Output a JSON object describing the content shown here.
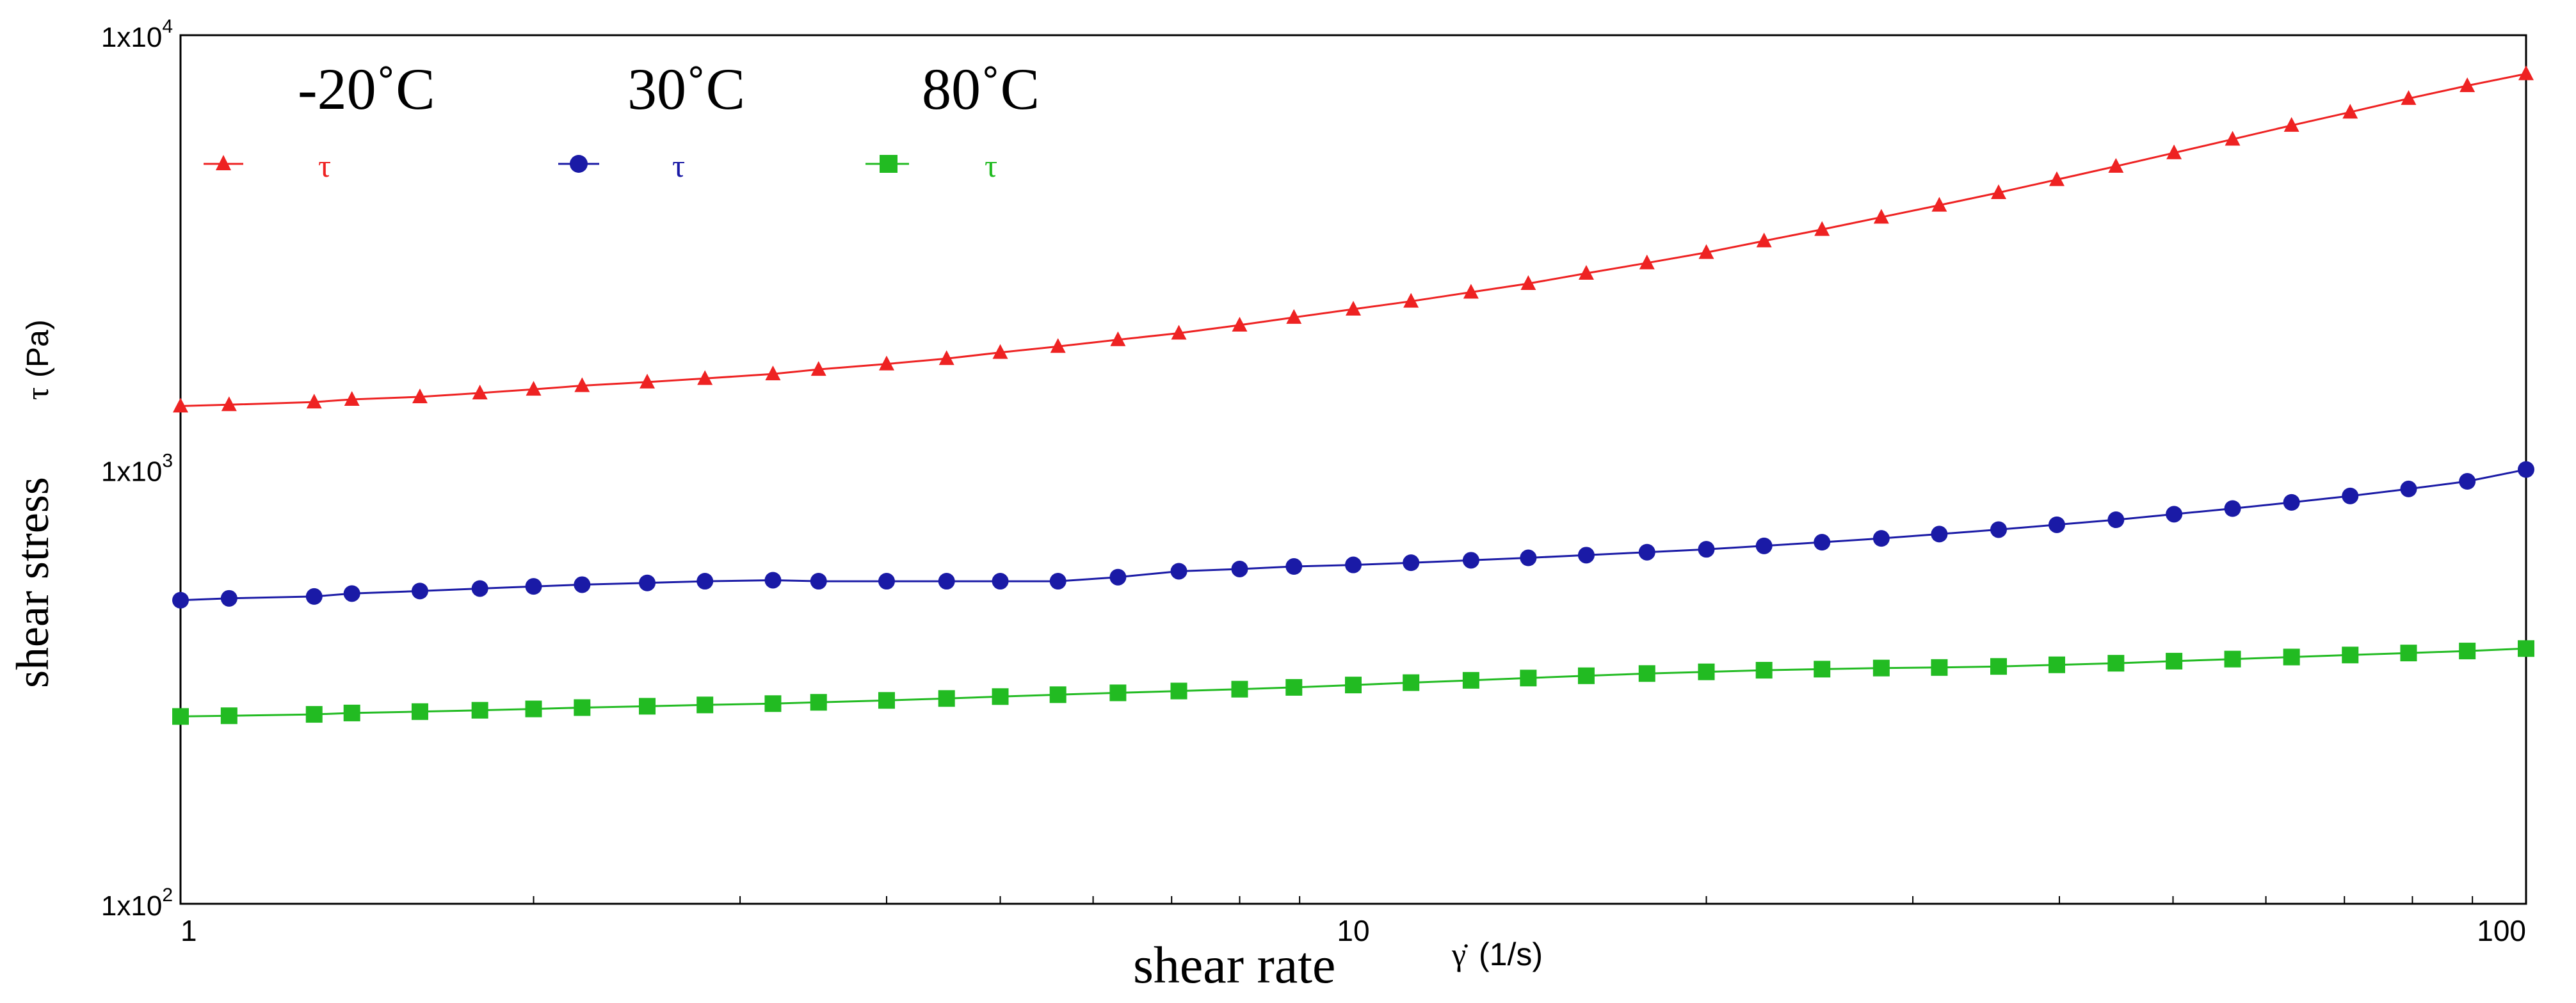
{
  "chart_data": {
    "type": "line",
    "scale": {
      "x": "log",
      "y": "log"
    },
    "xlim": [
      1,
      100
    ],
    "ylim": [
      100,
      10000
    ],
    "xlabel": "shear rate",
    "xlabel_symbol": "γ̇",
    "xlabel_unit": "(1/s)",
    "ylabel": "shear stress",
    "ylabel_symbol": "τ",
    "ylabel_unit": "(Pa)",
    "x_ticks": [
      {
        "value": 1,
        "label": "1"
      },
      {
        "value": 10,
        "label": "10"
      },
      {
        "value": 100,
        "label": "100"
      }
    ],
    "y_ticks": [
      {
        "value": 100,
        "base": "1x10",
        "exp": "2"
      },
      {
        "value": 1000,
        "base": "1x10",
        "exp": "3"
      },
      {
        "value": 10000,
        "base": "1x10",
        "exp": "4"
      }
    ],
    "series": [
      {
        "name": "-20˚C",
        "legend_symbol": "τ",
        "color": "#ee2222",
        "marker": "triangle",
        "x": [
          1,
          1.1,
          1.3,
          1.4,
          1.6,
          1.8,
          2,
          2.2,
          2.5,
          2.8,
          3.2,
          3.5,
          4,
          4.5,
          5,
          5.6,
          6.3,
          7.1,
          8,
          8.9,
          10,
          11.2,
          12.6,
          14.1,
          15.8,
          17.8,
          20,
          22.4,
          25.1,
          28.2,
          31.6,
          35.5,
          39.8,
          44.7,
          50.1,
          56.2,
          63.1,
          70.8,
          79.4,
          89.1,
          100
        ],
        "values": [
          1400,
          1410,
          1430,
          1450,
          1470,
          1500,
          1530,
          1560,
          1590,
          1620,
          1660,
          1700,
          1750,
          1800,
          1860,
          1920,
          1990,
          2060,
          2150,
          2240,
          2340,
          2440,
          2560,
          2680,
          2830,
          2990,
          3160,
          3360,
          3570,
          3810,
          4060,
          4340,
          4650,
          4990,
          5360,
          5760,
          6200,
          6650,
          7150,
          7650,
          8150
        ]
      },
      {
        "name": "30˚C",
        "legend_symbol": "τ",
        "color": "#1a1aa6",
        "marker": "circle",
        "x": [
          1,
          1.1,
          1.3,
          1.4,
          1.6,
          1.8,
          2,
          2.2,
          2.5,
          2.8,
          3.2,
          3.5,
          4,
          4.5,
          5,
          5.6,
          6.3,
          7.1,
          8,
          8.9,
          10,
          11.2,
          12.6,
          14.1,
          15.8,
          17.8,
          20,
          22.4,
          25.1,
          28.2,
          31.6,
          35.5,
          39.8,
          44.7,
          50.1,
          56.2,
          63.1,
          70.8,
          79.4,
          89.1,
          100
        ],
        "values": [
          500,
          505,
          510,
          518,
          525,
          532,
          538,
          543,
          548,
          553,
          556,
          553,
          553,
          553,
          553,
          553,
          565,
          583,
          590,
          598,
          603,
          610,
          618,
          626,
          635,
          645,
          655,
          667,
          680,
          694,
          710,
          727,
          746,
          766,
          789,
          813,
          840,
          869,
          902,
          939,
          1000
        ]
      },
      {
        "name": "80˚C",
        "legend_symbol": "τ",
        "color": "#22bb22",
        "marker": "square",
        "x": [
          1,
          1.1,
          1.3,
          1.4,
          1.6,
          1.8,
          2,
          2.2,
          2.5,
          2.8,
          3.2,
          3.5,
          4,
          4.5,
          5,
          5.6,
          6.3,
          7.1,
          8,
          8.9,
          10,
          11.2,
          12.6,
          14.1,
          15.8,
          17.8,
          20,
          22.4,
          25.1,
          28.2,
          31.6,
          35.5,
          39.8,
          44.7,
          50.1,
          56.2,
          63.1,
          70.8,
          79.4,
          89.1,
          100
        ],
        "values": [
          270,
          271,
          273,
          275,
          277,
          279,
          281,
          283,
          285,
          287,
          289,
          291,
          294,
          297,
          300,
          303,
          306,
          309,
          312,
          315,
          319,
          323,
          327,
          331,
          335,
          339,
          342,
          345,
          347,
          349,
          350,
          352,
          355,
          358,
          362,
          366,
          370,
          374,
          378,
          382,
          387
        ]
      }
    ]
  }
}
